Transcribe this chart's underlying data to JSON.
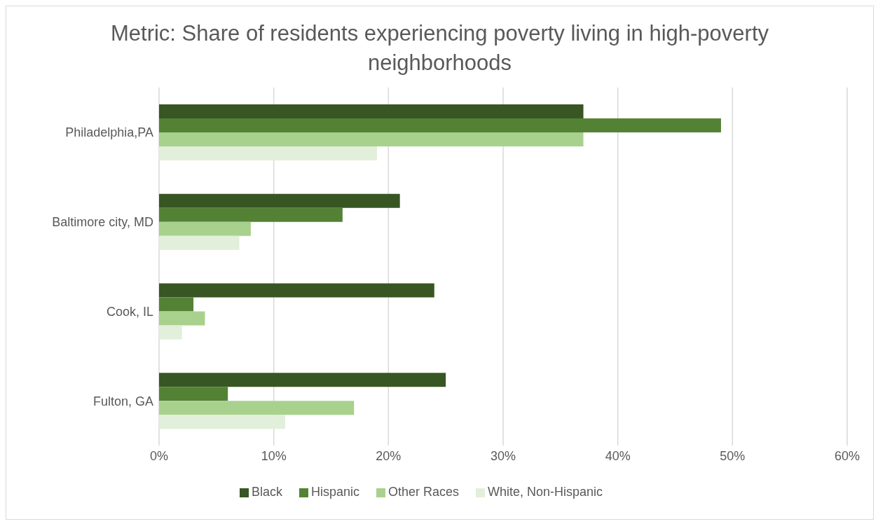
{
  "chart_data": {
    "type": "bar",
    "orientation": "horizontal",
    "title": "Metric: Share of residents experiencing poverty living in high-poverty neighborhoods",
    "categories": [
      "Philadelphia,PA",
      "Baltimore city, MD",
      "Cook, IL",
      "Fulton, GA"
    ],
    "series": [
      {
        "name": "Black",
        "color": "#375623",
        "values": [
          37,
          21,
          24,
          25
        ]
      },
      {
        "name": "Hispanic",
        "color": "#548235",
        "values": [
          49,
          16,
          3,
          6
        ]
      },
      {
        "name": "Other Races",
        "color": "#a9d18e",
        "values": [
          37,
          8,
          4,
          17
        ]
      },
      {
        "name": "White, Non-Hispanic",
        "color": "#e2efda",
        "values": [
          19,
          7,
          2,
          11
        ]
      }
    ],
    "xlim": [
      0,
      60
    ],
    "xticks": [
      {
        "value": 0,
        "label": "0%"
      },
      {
        "value": 10,
        "label": "10%"
      },
      {
        "value": 20,
        "label": "20%"
      },
      {
        "value": 30,
        "label": "30%"
      },
      {
        "value": 40,
        "label": "40%"
      },
      {
        "value": 50,
        "label": "50%"
      },
      {
        "value": 60,
        "label": "60%"
      }
    ],
    "grid": "x",
    "legend": "bottom"
  }
}
